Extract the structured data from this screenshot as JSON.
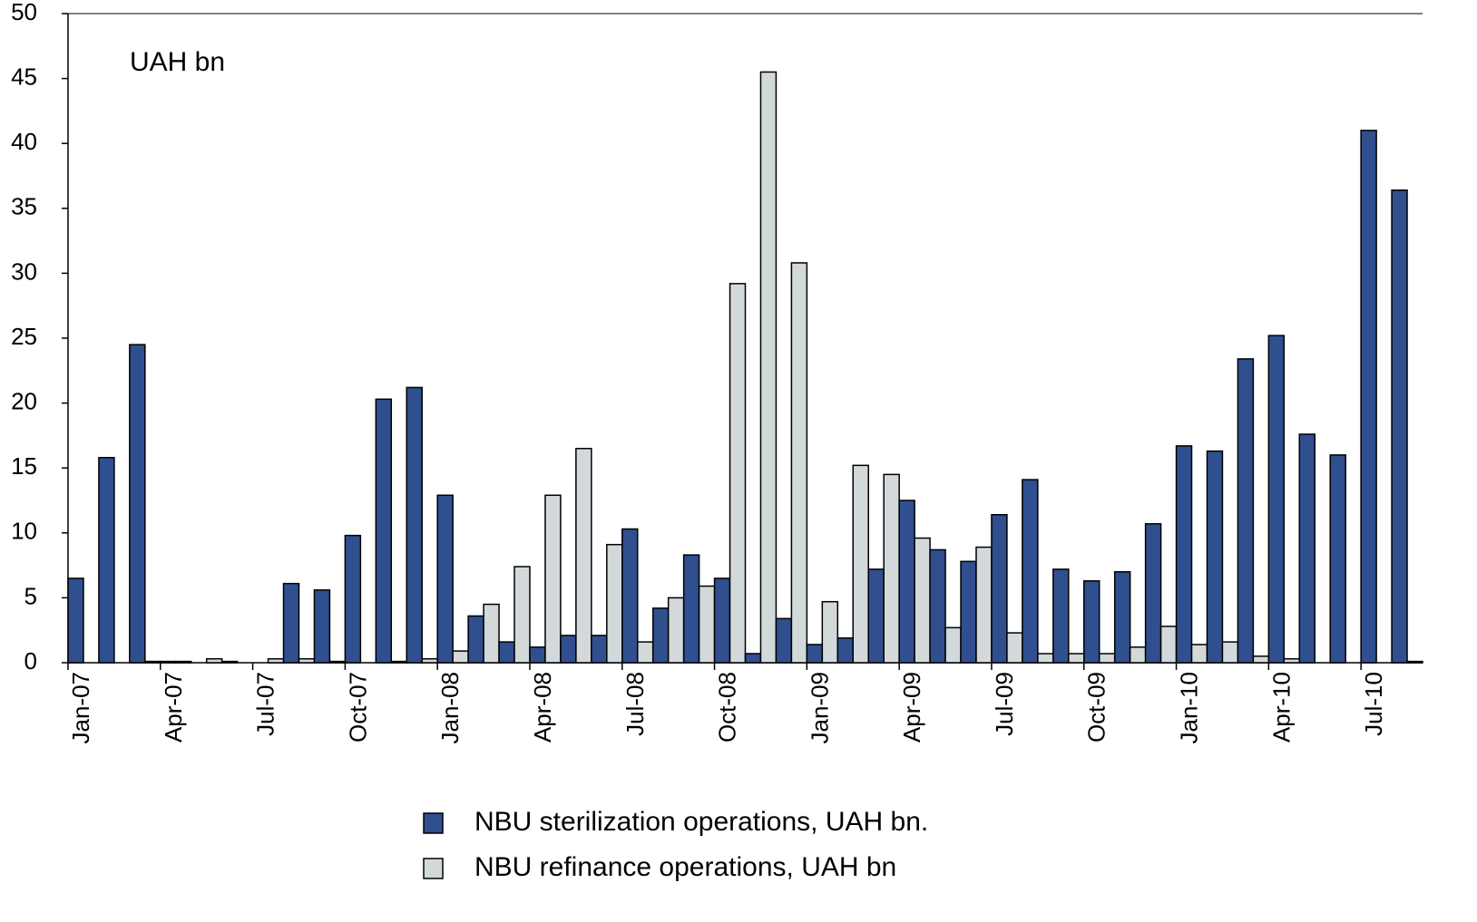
{
  "chart_data": {
    "type": "bar",
    "annotation": "UAH bn",
    "categories": [
      "Jan-07",
      null,
      null,
      "Apr-07",
      null,
      null,
      "Jul-07",
      null,
      null,
      "Oct-07",
      null,
      null,
      "Jan-08",
      null,
      null,
      "Apr-08",
      null,
      null,
      "Jul-08",
      null,
      null,
      "Oct-08",
      null,
      null,
      "Jan-09",
      null,
      null,
      "Apr-09",
      null,
      null,
      "Jul-09",
      null,
      null,
      "Oct-09",
      null,
      null,
      "Jan-10",
      null,
      null,
      "Apr-10",
      null,
      null,
      "Jul-10",
      null
    ],
    "series": [
      {
        "name": "NBU sterilization operations, UAH bn.",
        "color": "#2f4f8f",
        "values": [
          6.5,
          15.8,
          24.5,
          0.1,
          0,
          0.1,
          0,
          6.1,
          5.6,
          9.8,
          20.3,
          21.2,
          12.9,
          3.6,
          1.6,
          1.2,
          2.1,
          2.1,
          10.3,
          4.2,
          8.3,
          6.5,
          0.7,
          3.4,
          1.4,
          1.9,
          7.2,
          12.5,
          8.7,
          7.8,
          11.4,
          14.1,
          7.2,
          6.3,
          7.0,
          10.7,
          16.7,
          16.3,
          23.4,
          25.2,
          17.6,
          16.0,
          41.0,
          36.4
        ]
      },
      {
        "name": "NBU refinance operations, UAH bn",
        "color": "#d3d9da",
        "values": [
          0,
          0,
          0.1,
          0.1,
          0.3,
          0,
          0.3,
          0.3,
          0.1,
          0,
          0.1,
          0.3,
          0.9,
          4.5,
          7.4,
          12.9,
          16.5,
          9.1,
          1.6,
          5.0,
          5.9,
          29.2,
          45.5,
          30.8,
          4.7,
          15.2,
          14.5,
          9.6,
          2.7,
          8.9,
          2.3,
          0.7,
          0.7,
          0.7,
          1.2,
          2.8,
          1.4,
          1.6,
          0.5,
          0.3,
          0,
          0,
          0,
          0.1
        ]
      }
    ],
    "ylim": [
      0,
      50
    ],
    "yticks": [
      0,
      5,
      10,
      15,
      20,
      25,
      30,
      35,
      40,
      45,
      50
    ],
    "grid": false
  }
}
